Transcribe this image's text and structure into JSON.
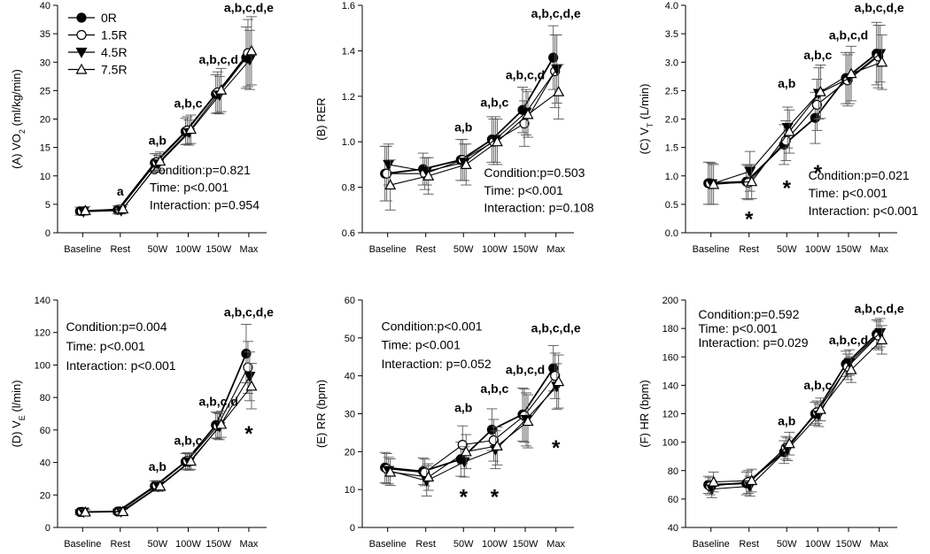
{
  "legend": [
    {
      "label": "0R",
      "marker": "circle",
      "fill": "#000000"
    },
    {
      "label": "1.5R",
      "marker": "circle",
      "fill": "#ffffff"
    },
    {
      "label": "4.5R",
      "marker": "triangle-down",
      "fill": "#000000"
    },
    {
      "label": "7.5R",
      "marker": "triangle-up",
      "fill": "#ffffff"
    }
  ],
  "chart_data": [
    {
      "id": "A",
      "type": "line",
      "ylabel_prefix": "(A) VO",
      "ylabel_sub": "2",
      "ylabel_suffix": " (ml/kg/min)",
      "categories": [
        "Baseline",
        "Rest",
        "50W",
        "100W",
        "150W",
        "Max"
      ],
      "ylim": [
        0,
        40
      ],
      "yticks": [
        0,
        5,
        10,
        15,
        20,
        25,
        30,
        35,
        40
      ],
      "series": [
        {
          "name": "0R",
          "values": [
            3.8,
            4.0,
            12.3,
            17.8,
            24.4,
            30.8
          ],
          "errors": [
            0.7,
            0.7,
            1.6,
            2.3,
            3.4,
            5.4
          ]
        },
        {
          "name": "1.5R",
          "values": [
            3.8,
            4.1,
            12.4,
            18.0,
            24.7,
            31.6
          ],
          "errors": [
            0.7,
            0.7,
            1.5,
            2.4,
            3.6,
            5.9
          ]
        },
        {
          "name": "4.5R",
          "values": [
            3.7,
            3.9,
            12.1,
            17.6,
            24.2,
            30.4
          ],
          "errors": [
            0.6,
            0.6,
            1.5,
            2.2,
            3.3,
            5.2
          ]
        },
        {
          "name": "7.5R",
          "values": [
            3.9,
            4.2,
            12.6,
            18.2,
            25.1,
            32.0
          ],
          "errors": [
            0.7,
            0.7,
            1.6,
            2.5,
            3.8,
            6.0
          ]
        }
      ],
      "sig_labels": [
        {
          "cat": 1,
          "y": 6.5,
          "text": "a"
        },
        {
          "cat": 2,
          "y": 15.5,
          "text": "a,b"
        },
        {
          "cat": 3,
          "y": 22.0,
          "text": "a,b,c"
        },
        {
          "cat": 4,
          "y": 29.7,
          "text": "a,b,c,d"
        },
        {
          "cat": 5,
          "y": 38.8,
          "text": "a,b,c,d,e"
        }
      ],
      "stars": [],
      "stats": [
        "Condition:p=0.821",
        "Time: p<0.001",
        "Interaction: p=0.954"
      ],
      "stats_y": [
        10.3,
        7.2,
        4.1
      ]
    },
    {
      "id": "B",
      "type": "line",
      "ylabel_prefix": "(B) RER",
      "ylabel_sub": "",
      "ylabel_suffix": "",
      "categories": [
        "Baseline",
        "Rest",
        "50W",
        "100W",
        "150W",
        "Max"
      ],
      "ylim": [
        0.6,
        1.6
      ],
      "yticks": [
        0.6,
        0.8,
        1.0,
        1.2,
        1.4,
        1.6
      ],
      "series": [
        {
          "name": "0R",
          "values": [
            0.86,
            0.88,
            0.92,
            1.01,
            1.14,
            1.37
          ],
          "errors": [
            0.12,
            0.07,
            0.09,
            0.1,
            0.1,
            0.14
          ]
        },
        {
          "name": "1.5R",
          "values": [
            0.86,
            0.86,
            0.92,
            1.0,
            1.08,
            1.31
          ],
          "errors": [
            0.12,
            0.07,
            0.09,
            0.1,
            0.1,
            0.16
          ]
        },
        {
          "name": "4.5R",
          "values": [
            0.9,
            0.87,
            0.91,
            1.01,
            1.13,
            1.32
          ],
          "errors": [
            0.09,
            0.06,
            0.08,
            0.1,
            0.1,
            0.15
          ]
        },
        {
          "name": "7.5R",
          "values": [
            0.81,
            0.85,
            0.9,
            1.0,
            1.12,
            1.22
          ],
          "errors": [
            0.11,
            0.08,
            0.09,
            0.1,
            0.1,
            0.12
          ]
        }
      ],
      "sig_labels": [
        {
          "cat": 2,
          "y": 1.045,
          "text": "a,b"
        },
        {
          "cat": 3,
          "y": 1.155,
          "text": "a,b,c"
        },
        {
          "cat": 4,
          "y": 1.275,
          "text": "a,b,c,d"
        },
        {
          "cat": 5,
          "y": 1.545,
          "text": "a,b,c,d,e"
        }
      ],
      "stars": [],
      "stats": [
        "Condition:p=0.503",
        "Time: p<0.001",
        "Interaction: p=0.108"
      ],
      "stats_y": [
        0.845,
        0.768,
        0.691
      ]
    },
    {
      "id": "C",
      "type": "line",
      "ylabel_prefix": "(C) V",
      "ylabel_sub": "T",
      "ylabel_suffix": " (L/min)",
      "categories": [
        "Baseline",
        "Rest",
        "50W",
        "100W",
        "150W",
        "Max"
      ],
      "ylim": [
        0,
        4.0
      ],
      "yticks": [
        0.0,
        0.5,
        1.0,
        1.5,
        2.0,
        2.5,
        3.0,
        3.5,
        4.0
      ],
      "series": [
        {
          "name": "0R",
          "values": [
            0.87,
            0.9,
            1.55,
            2.02,
            2.72,
            3.15
          ],
          "errors": [
            0.37,
            0.3,
            0.35,
            0.45,
            0.45,
            0.55
          ]
        },
        {
          "name": "1.5R",
          "values": [
            0.87,
            0.88,
            1.62,
            2.25,
            2.68,
            3.1
          ],
          "errors": [
            0.37,
            0.3,
            0.35,
            0.45,
            0.45,
            0.55
          ]
        },
        {
          "name": "4.5R",
          "values": [
            0.86,
            1.08,
            1.85,
            2.45,
            2.72,
            3.15
          ],
          "errors": [
            0.36,
            0.35,
            0.36,
            0.45,
            0.45,
            0.5
          ]
        },
        {
          "name": "7.5R",
          "values": [
            0.85,
            0.9,
            1.78,
            2.48,
            2.8,
            3.0
          ],
          "errors": [
            0.35,
            0.3,
            0.38,
            0.47,
            0.48,
            0.48
          ]
        }
      ],
      "sig_labels": [
        {
          "cat": 2,
          "y": 2.55,
          "text": "a,b"
        },
        {
          "cat": 3,
          "y": 3.05,
          "text": "a,b,c"
        },
        {
          "cat": 4,
          "y": 3.4,
          "text": "a,b,c,d"
        },
        {
          "cat": 5,
          "y": 3.88,
          "text": "a,b,c,d,e"
        }
      ],
      "stars": [
        {
          "cat": 1,
          "y": 0.3,
          "text": "*"
        },
        {
          "cat": 2,
          "y": 0.85,
          "text": "*"
        },
        {
          "cat": 3,
          "y": 1.12,
          "text": "*"
        }
      ],
      "stats": [
        "Condition:p=0.021",
        "Time: p<0.001",
        "Interaction: p<0.001"
      ],
      "stats_y": [
        0.93,
        0.62,
        0.31
      ]
    },
    {
      "id": "D",
      "type": "line",
      "ylabel_prefix": "(D) V",
      "ylabel_sub": "E",
      "ylabel_suffix": " (l/min)",
      "categories": [
        "Baseline",
        "Rest",
        "50W",
        "100W",
        "150W",
        "Max"
      ],
      "ylim": [
        0,
        140
      ],
      "yticks": [
        0,
        20,
        40,
        60,
        80,
        100,
        120,
        140
      ],
      "series": [
        {
          "name": "0R",
          "values": [
            9.5,
            9.8,
            25.5,
            40.5,
            63.0,
            107.0
          ],
          "errors": [
            1.5,
            1.5,
            3.0,
            5.0,
            8.0,
            18.0
          ]
        },
        {
          "name": "1.5R",
          "values": [
            9.6,
            9.9,
            25.8,
            41.0,
            62.5,
            98.5
          ],
          "errors": [
            1.5,
            1.5,
            3.0,
            5.0,
            8.0,
            16.0
          ]
        },
        {
          "name": "4.5R",
          "values": [
            9.4,
            9.7,
            25.2,
            40.2,
            62.0,
            93.0
          ],
          "errors": [
            1.4,
            1.4,
            3.0,
            5.0,
            8.0,
            15.0
          ]
        },
        {
          "name": "7.5R",
          "values": [
            9.5,
            9.8,
            25.5,
            40.8,
            63.5,
            87.0
          ],
          "errors": [
            1.5,
            1.5,
            3.0,
            5.0,
            8.0,
            14.0
          ]
        }
      ],
      "sig_labels": [
        {
          "cat": 2,
          "y": 35.0,
          "text": "a,b"
        },
        {
          "cat": 3,
          "y": 51.0,
          "text": "a,b,c"
        },
        {
          "cat": 4,
          "y": 75.0,
          "text": "a,b,c,d"
        },
        {
          "cat": 5,
          "y": 130.0,
          "text": "a,b,c,d,e"
        }
      ],
      "stars": [
        {
          "cat": 5,
          "y": 60.0,
          "text": "*"
        }
      ],
      "stats": [
        "Condition:p=0.004",
        "Time: p<0.001",
        "Interaction: p<0.001"
      ],
      "stats_y": [
        121.0,
        109.0,
        97.0
      ]
    },
    {
      "id": "E",
      "type": "line",
      "ylabel_prefix": "(E) RR (bpm)",
      "ylabel_sub": "",
      "ylabel_suffix": "",
      "categories": [
        "Baseline",
        "Rest",
        "50W",
        "100W",
        "150W",
        "Max"
      ],
      "ylim": [
        0,
        60
      ],
      "yticks": [
        0,
        10,
        20,
        30,
        40,
        50,
        60
      ],
      "series": [
        {
          "name": "0R",
          "values": [
            15.8,
            14.8,
            18.0,
            25.8,
            29.8,
            42.0
          ],
          "errors": [
            4.0,
            3.5,
            4.5,
            5.5,
            7.0,
            6.0
          ]
        },
        {
          "name": "1.5R",
          "values": [
            15.5,
            14.5,
            21.8,
            23.0,
            29.5,
            40.0
          ],
          "errors": [
            4.0,
            3.5,
            5.0,
            5.5,
            7.0,
            6.0
          ]
        },
        {
          "name": "4.5R",
          "values": [
            15.0,
            12.3,
            17.3,
            20.5,
            28.5,
            37.2
          ],
          "errors": [
            3.5,
            4.0,
            4.0,
            5.0,
            7.0,
            6.0
          ]
        },
        {
          "name": "7.5R",
          "values": [
            14.6,
            13.3,
            20.0,
            21.5,
            28.0,
            38.5
          ],
          "errors": [
            3.5,
            3.5,
            4.5,
            5.0,
            7.0,
            7.0
          ]
        }
      ],
      "sig_labels": [
        {
          "cat": 2,
          "y": 30.5,
          "text": "a,b"
        },
        {
          "cat": 3,
          "y": 35.5,
          "text": "a,b,c"
        },
        {
          "cat": 4,
          "y": 40.5,
          "text": "a,b,c,d"
        },
        {
          "cat": 5,
          "y": 51.5,
          "text": "a,b,c,d,e"
        }
      ],
      "stars": [
        {
          "cat": 2,
          "y": 9.0,
          "text": "*"
        },
        {
          "cat": 3,
          "y": 9.0,
          "text": "*"
        },
        {
          "cat": 5,
          "y": 22.0,
          "text": "*"
        }
      ],
      "stats": [
        "Condition:p<0.001",
        "Time: p<0.001",
        "Interaction: p=0.052"
      ],
      "stats_y": [
        52.0,
        47.0,
        42.0
      ]
    },
    {
      "id": "F",
      "type": "line",
      "ylabel_prefix": "(F) HR (bpm)",
      "ylabel_sub": "",
      "ylabel_suffix": "",
      "categories": [
        "Baseline",
        "Rest",
        "50W",
        "100W",
        "150W",
        "Max"
      ],
      "ylim": [
        40,
        200
      ],
      "yticks": [
        40,
        60,
        80,
        100,
        120,
        140,
        160,
        180,
        200
      ],
      "series": [
        {
          "name": "0R",
          "values": [
            70,
            71,
            93,
            120,
            155,
            176
          ],
          "errors": [
            6,
            8,
            8,
            8,
            9,
            10
          ]
        },
        {
          "name": "1.5R",
          "values": [
            69,
            72,
            96,
            121,
            153,
            175
          ],
          "errors": [
            6,
            8,
            8,
            8,
            9,
            10
          ]
        },
        {
          "name": "4.5R",
          "values": [
            67,
            69,
            95,
            119,
            156,
            177
          ],
          "errors": [
            6,
            7,
            8,
            8,
            9,
            10
          ]
        },
        {
          "name": "7.5R",
          "values": [
            72,
            73,
            99,
            123,
            151,
            172
          ],
          "errors": [
            7,
            8,
            8,
            8,
            9,
            10
          ]
        }
      ],
      "sig_labels": [
        {
          "cat": 2,
          "y": 112.0,
          "text": "a,b"
        },
        {
          "cat": 3,
          "y": 137.0,
          "text": "a,b,c"
        },
        {
          "cat": 4,
          "y": 169.0,
          "text": "a,b,c,d"
        },
        {
          "cat": 5,
          "y": 191.0,
          "text": "a,b,c,d,e"
        }
      ],
      "stars": [],
      "stats": [
        "Condition:p=0.592",
        "Time: p<0.001",
        "Interaction: p=0.029"
      ],
      "stats_y": [
        187.0,
        177.0,
        167.0
      ]
    }
  ]
}
